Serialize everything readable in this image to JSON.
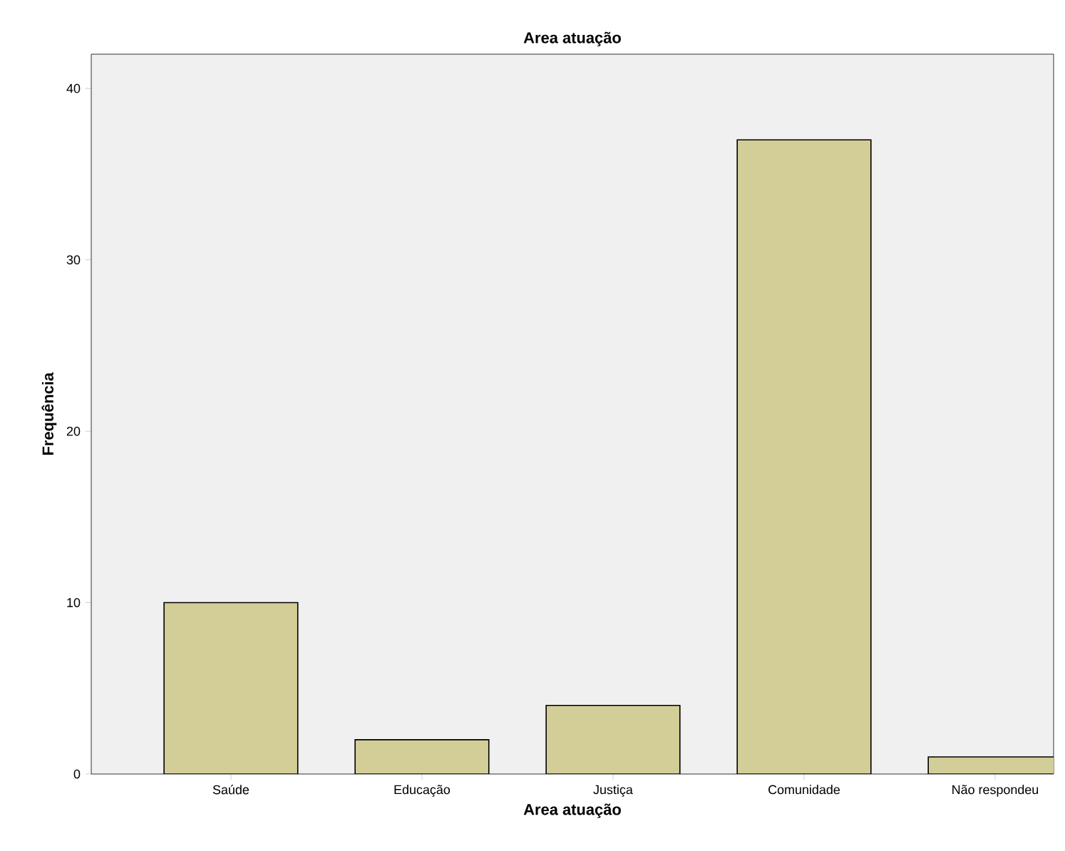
{
  "chart_data": {
    "type": "bar",
    "title": "Area atuação",
    "xlabel": "Area atuação",
    "ylabel": "Frequência",
    "categories": [
      "Saúde",
      "Educação",
      "Justiça",
      "Comunidade",
      "Não respondeu"
    ],
    "values": [
      10,
      2,
      4,
      37,
      1
    ],
    "color": "#d3ce97",
    "ylim": [
      0,
      42
    ],
    "yticks": [
      0,
      10,
      20,
      30,
      40
    ]
  }
}
